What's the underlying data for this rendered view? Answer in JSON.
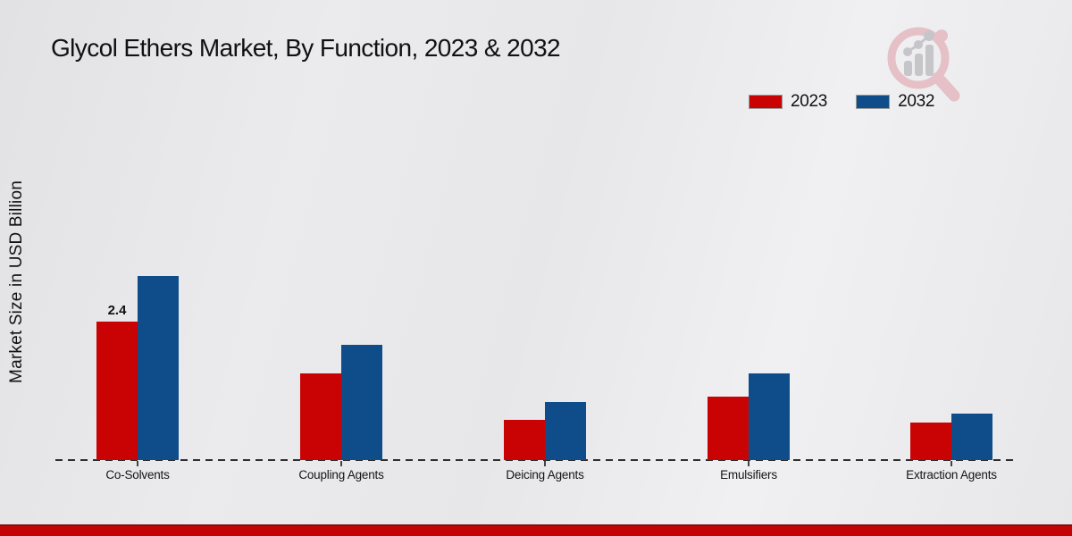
{
  "title": "Glycol Ethers Market, By Function, 2023 & 2032",
  "y_axis_label": "Market Size in USD Billion",
  "legend": {
    "items": [
      {
        "label": "2023",
        "color": "#c90303"
      },
      {
        "label": "2032",
        "color": "#0f4d8a"
      }
    ]
  },
  "logo": {
    "name": "market-research-magnifier-logo",
    "ring_color": "#e5c1c7",
    "bars_color": "#c6c6ca"
  },
  "chart_data": {
    "type": "bar",
    "title": "Glycol Ethers Market, By Function, 2023 & 2032",
    "xlabel": "",
    "ylabel": "Market Size in USD Billion",
    "categories": [
      "Co-Solvents",
      "Coupling Agents",
      "Deicing Agents",
      "Emulsifiers",
      "Extraction Agents"
    ],
    "series": [
      {
        "name": "2023",
        "color": "#c90303",
        "values": [
          2.4,
          1.5,
          0.7,
          1.1,
          0.65
        ]
      },
      {
        "name": "2032",
        "color": "#0f4d8a",
        "values": [
          3.2,
          2.0,
          1.0,
          1.5,
          0.8
        ]
      }
    ],
    "annotations": [
      {
        "category": "Co-Solvents",
        "series": "2023",
        "text": "2.4"
      }
    ],
    "ylim": [
      0,
      3.5
    ],
    "grid": false,
    "axis_style": "dashed-baseline-only",
    "legend_position": "top-right"
  },
  "footer": {
    "stripe_color": "#c40404"
  }
}
